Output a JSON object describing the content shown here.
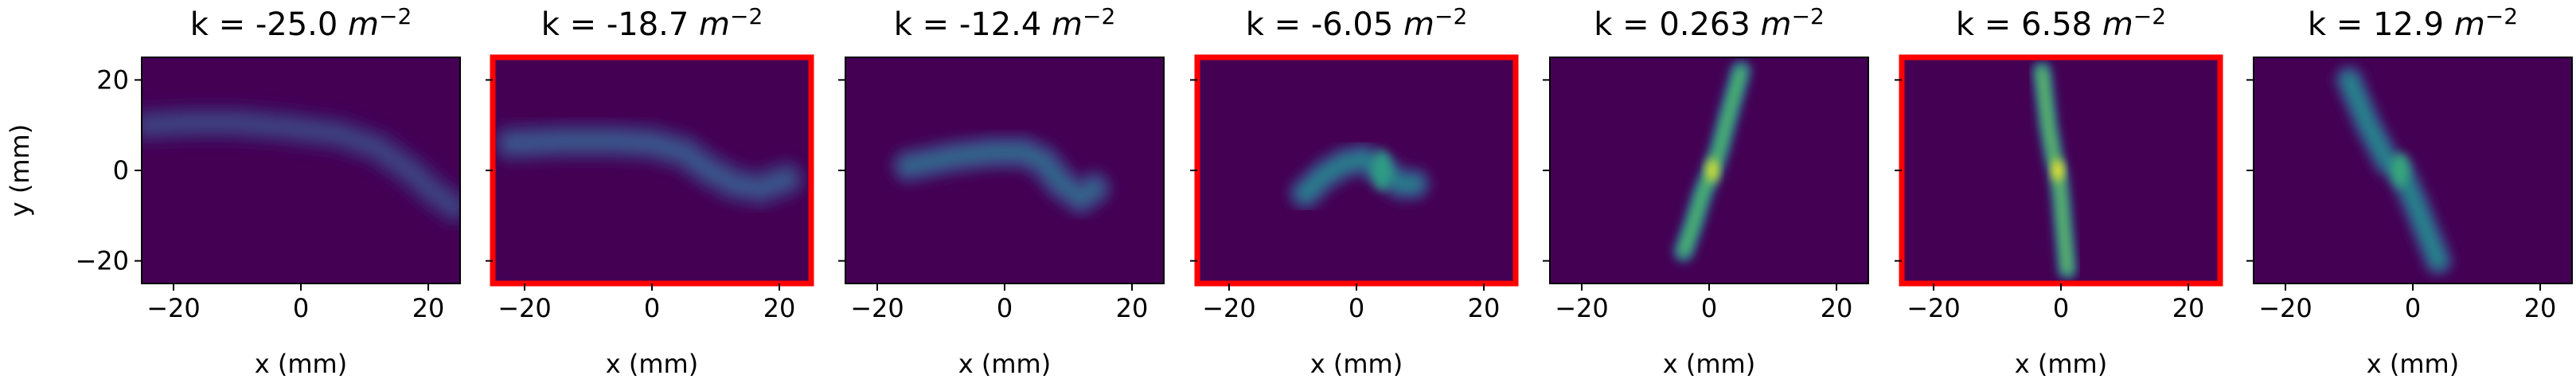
{
  "figure": {
    "background": "#ffffff",
    "colormap": [
      "#440154",
      "#3b528b",
      "#21918c",
      "#5ec962",
      "#fde725"
    ]
  },
  "chart_data": [
    {
      "type": "heatmap",
      "title": "k = -25.0 m⁻²",
      "k_label": "k = -25.0",
      "unit": "m",
      "unit_exp": "−2",
      "xlabel": "x (mm)",
      "ylabel": "y (mm)",
      "xlim": [
        -25,
        25
      ],
      "ylim": [
        -25,
        25
      ],
      "xticks": [
        -20,
        0,
        20
      ],
      "yticks": [
        -20,
        0,
        20
      ],
      "highlighted": false,
      "highlight_color": "#ff0000",
      "beam_path": [
        [
          -24,
          10
        ],
        [
          -18,
          10.5
        ],
        [
          -10,
          10.5
        ],
        [
          -2,
          9.5
        ],
        [
          6,
          8
        ],
        [
          12,
          5
        ],
        [
          17,
          0
        ],
        [
          21,
          -5
        ],
        [
          24,
          -8
        ]
      ],
      "beam_peak": 0.25,
      "beam_width": 2.6
    },
    {
      "type": "heatmap",
      "title": "k = -18.7 m⁻²",
      "k_label": "k = -18.7",
      "unit": "m",
      "unit_exp": "−2",
      "xlabel": "x (mm)",
      "ylabel": "",
      "xlim": [
        -25,
        25
      ],
      "ylim": [
        -25,
        25
      ],
      "xticks": [
        -20,
        0,
        20
      ],
      "yticks": [
        -20,
        0,
        20
      ],
      "highlighted": true,
      "highlight_color": "#ff0000",
      "beam_path": [
        [
          -22,
          6
        ],
        [
          -14,
          6.5
        ],
        [
          -6,
          6.5
        ],
        [
          0,
          6
        ],
        [
          5,
          4
        ],
        [
          9,
          0
        ],
        [
          13,
          -3
        ],
        [
          17,
          -4
        ],
        [
          21,
          -2
        ]
      ],
      "beam_peak": 0.33,
      "beam_width": 2.6
    },
    {
      "type": "heatmap",
      "title": "k = -12.4 m⁻²",
      "k_label": "k = -12.4",
      "unit": "m",
      "unit_exp": "−2",
      "xlabel": "x (mm)",
      "ylabel": "",
      "xlim": [
        -25,
        25
      ],
      "ylim": [
        -25,
        25
      ],
      "xticks": [
        -20,
        0,
        20
      ],
      "yticks": [
        -20,
        0,
        20
      ],
      "highlighted": false,
      "highlight_color": "#ff0000",
      "beam_path": [
        [
          -15,
          1
        ],
        [
          -8,
          3
        ],
        [
          -2,
          4
        ],
        [
          3,
          4
        ],
        [
          6,
          2
        ],
        [
          9,
          -3
        ],
        [
          12,
          -6
        ],
        [
          14,
          -4
        ]
      ],
      "beam_peak": 0.42,
      "beam_width": 2.4
    },
    {
      "type": "heatmap",
      "title": "k = -6.05 m⁻²",
      "k_label": "k = -6.05",
      "unit": "m",
      "unit_exp": "−2",
      "xlabel": "x (mm)",
      "ylabel": "",
      "xlim": [
        -25,
        25
      ],
      "ylim": [
        -25,
        25
      ],
      "xticks": [
        -20,
        0,
        20
      ],
      "yticks": [
        -20,
        0,
        20
      ],
      "highlighted": true,
      "highlight_color": "#ff0000",
      "beam_path": [
        [
          -8,
          -5
        ],
        [
          -5,
          -1
        ],
        [
          -2,
          1.5
        ],
        [
          1,
          2.5
        ],
        [
          4,
          0
        ],
        [
          7,
          -3
        ],
        [
          9,
          -3
        ]
      ],
      "beam_peak": 0.55,
      "beam_width": 2.2
    },
    {
      "type": "heatmap",
      "title": "k = 0.263 m⁻²",
      "k_label": "k = 0.263",
      "unit": "m",
      "unit_exp": "−2",
      "xlabel": "x (mm)",
      "ylabel": "",
      "xlim": [
        -25,
        25
      ],
      "ylim": [
        -25,
        25
      ],
      "xticks": [
        -20,
        0,
        20
      ],
      "yticks": [
        -20,
        0,
        20
      ],
      "highlighted": false,
      "highlight_color": "#ff0000",
      "beam_path": [
        [
          5,
          22
        ],
        [
          3,
          12
        ],
        [
          1.5,
          4
        ],
        [
          0.5,
          0
        ],
        [
          -1,
          -5
        ],
        [
          -2.5,
          -12
        ],
        [
          -4,
          -18
        ]
      ],
      "beam_peak": 0.95,
      "beam_width": 1.3
    },
    {
      "type": "heatmap",
      "title": "k = 6.58 m⁻²",
      "k_label": "k = 6.58",
      "unit": "m",
      "unit_exp": "−2",
      "xlabel": "x (mm)",
      "ylabel": "",
      "xlim": [
        -25,
        25
      ],
      "ylim": [
        -25,
        25
      ],
      "xticks": [
        -20,
        0,
        20
      ],
      "yticks": [
        -20,
        0,
        20
      ],
      "highlighted": true,
      "highlight_color": "#ff0000",
      "beam_path": [
        [
          -3,
          22
        ],
        [
          -2,
          10
        ],
        [
          -1,
          2
        ],
        [
          -0.5,
          0
        ],
        [
          0,
          -6
        ],
        [
          0.5,
          -14
        ],
        [
          1,
          -22
        ]
      ],
      "beam_peak": 1.0,
      "beam_width": 1.2
    },
    {
      "type": "heatmap",
      "title": "k = 12.9 m⁻²",
      "k_label": "k = 12.9",
      "unit": "m",
      "unit_exp": "−2",
      "xlabel": "x (mm)",
      "ylabel": "",
      "xlim": [
        -25,
        25
      ],
      "ylim": [
        -25,
        25
      ],
      "xticks": [
        -20,
        0,
        20
      ],
      "yticks": [
        -20,
        0,
        20
      ],
      "highlighted": false,
      "highlight_color": "#ff0000",
      "beam_path": [
        [
          -10,
          20
        ],
        [
          -7,
          10
        ],
        [
          -4,
          2
        ],
        [
          -2,
          0
        ],
        [
          0,
          -6
        ],
        [
          2,
          -13
        ],
        [
          4,
          -20
        ]
      ],
      "beam_peak": 0.6,
      "beam_width": 1.9
    }
  ]
}
